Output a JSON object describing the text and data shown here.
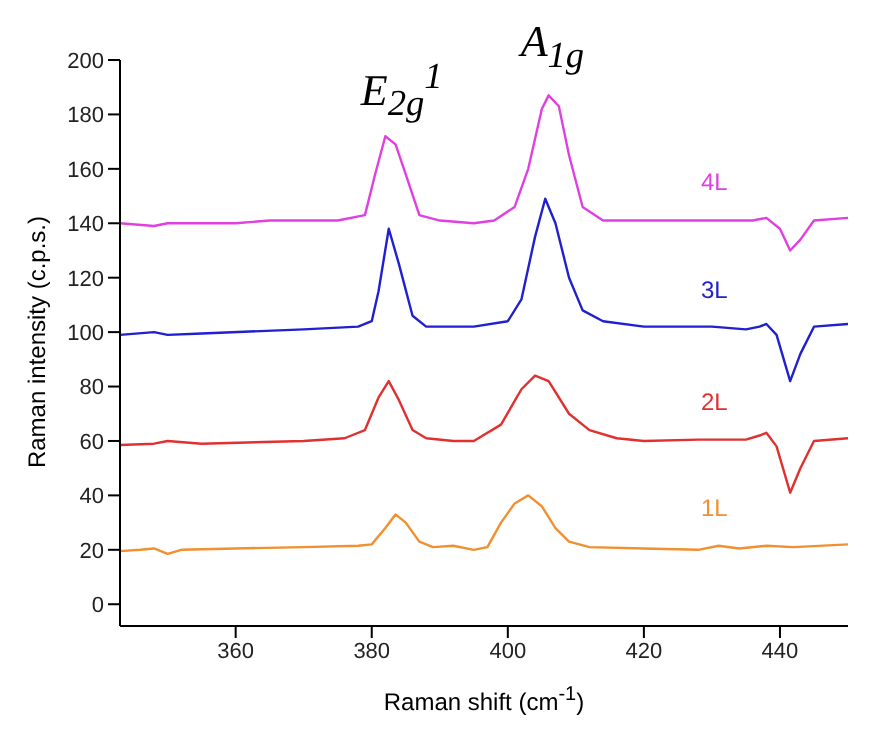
{
  "chart_data": {
    "type": "line",
    "xlabel": "Raman shift (cm$^{-1}$)",
    "ylabel": "Raman intensity (c.p.s.)",
    "xlim": [
      343,
      450
    ],
    "xticks": [
      360,
      380,
      400,
      420,
      440
    ],
    "ylim": [
      -8,
      200
    ],
    "yticks": [
      0,
      20,
      40,
      60,
      80,
      100,
      120,
      140,
      160,
      180,
      200
    ],
    "marker": "none",
    "line_style": "solid",
    "annotations": [
      {
        "text": "E$_{2g}$$^{1}$",
        "x": 382.5,
        "y": 172
      },
      {
        "text": "A$_{1g}$",
        "x": 406,
        "y": 187
      }
    ],
    "series": [
      {
        "name": "4L",
        "color": "#e040e0",
        "x": [
          343,
          348,
          350,
          360,
          365,
          375,
          379,
          380.5,
          382,
          383.5,
          385,
          387,
          390,
          395,
          398,
          401,
          403,
          405,
          406,
          407.5,
          409,
          411,
          414,
          420,
          430,
          436,
          438,
          440,
          441.5,
          443,
          445,
          450
        ],
        "values": [
          140,
          139,
          140,
          140,
          141,
          141,
          143,
          158,
          172,
          169,
          158,
          143,
          141,
          140,
          141,
          146,
          160,
          182,
          187,
          183,
          165,
          146,
          141,
          141,
          141,
          141,
          142,
          138,
          130,
          134,
          141,
          142
        ]
      },
      {
        "name": "3L",
        "color": "#2020d0",
        "x": [
          343,
          348,
          350,
          355,
          370,
          378,
          380,
          381,
          382.5,
          384,
          386,
          388,
          395,
          400,
          402,
          404,
          405.5,
          407,
          409,
          411,
          414,
          420,
          430,
          435,
          437,
          438,
          439.5,
          441.5,
          443,
          445,
          450
        ],
        "values": [
          99,
          100,
          99,
          99.5,
          101,
          102,
          104,
          115,
          138,
          125,
          106,
          102,
          102,
          104,
          112,
          135,
          149,
          140,
          120,
          108,
          104,
          102,
          102,
          101,
          102,
          103,
          99,
          82,
          92,
          102,
          103
        ]
      },
      {
        "name": "2L",
        "color": "#e03030",
        "x": [
          343,
          348,
          350,
          355,
          370,
          376,
          379,
          381,
          382.5,
          384,
          386,
          388,
          392,
          395,
          399,
          402,
          404,
          406,
          409,
          412,
          416,
          420,
          428,
          435,
          437,
          438,
          439.5,
          441.5,
          443,
          445,
          450
        ],
        "values": [
          58.5,
          59,
          60,
          59,
          60,
          61,
          64,
          76,
          82,
          75,
          64,
          61,
          60,
          60,
          66,
          79,
          84,
          82,
          70,
          64,
          61,
          60,
          60.5,
          60.5,
          62,
          63,
          58,
          41,
          50,
          60,
          61
        ]
      },
      {
        "name": "1L",
        "color": "#f09030",
        "x": [
          343,
          346,
          348,
          350,
          352,
          360,
          370,
          378,
          380,
          382,
          383.5,
          385,
          387,
          389,
          392,
          395,
          397,
          399,
          401,
          403,
          405,
          407,
          409,
          412,
          420,
          428,
          431,
          434,
          438,
          442,
          450
        ],
        "values": [
          19.5,
          20,
          20.5,
          18.5,
          20,
          20.5,
          21,
          21.5,
          22,
          28,
          33,
          30,
          23,
          21,
          21.5,
          20,
          21,
          30,
          37,
          40,
          36,
          28,
          23,
          21,
          20.5,
          20,
          21.5,
          20.5,
          21.5,
          21,
          22
        ]
      }
    ]
  }
}
